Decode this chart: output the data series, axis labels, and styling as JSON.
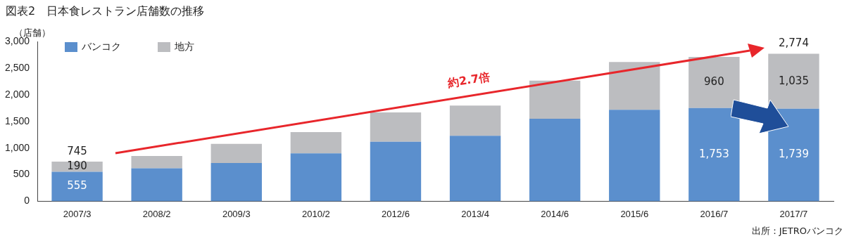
{
  "chart_data": {
    "type": "bar",
    "title": "図表2　日本食レストラン店舗数の推移",
    "ylabel": "（店舗）",
    "categories": [
      "2007/3",
      "2008/2",
      "2009/3",
      "2010/2",
      "2012/6",
      "2013/4",
      "2014/6",
      "2015/6",
      "2016/7",
      "2017/7"
    ],
    "series": [
      {
        "name": "バンコク",
        "color": "#5b8fcd",
        "values": [
          555,
          620,
          720,
          900,
          1120,
          1230,
          1550,
          1720,
          1753,
          1739
        ],
        "value_labels": [
          "555",
          null,
          null,
          null,
          null,
          null,
          null,
          null,
          "1,753",
          "1,739"
        ]
      },
      {
        "name": "地方",
        "color": "#bcbdc0",
        "values": [
          190,
          230,
          360,
          400,
          550,
          570,
          720,
          900,
          960,
          1035
        ],
        "value_labels": [
          "190",
          null,
          null,
          null,
          null,
          null,
          null,
          null,
          "960",
          "1,035"
        ]
      }
    ],
    "stacked": true,
    "totals": [
      "745",
      null,
      null,
      null,
      null,
      null,
      null,
      null,
      null,
      "2,774"
    ],
    "ylim": [
      0,
      3000
    ],
    "yticks": [
      0,
      500,
      {
        "value": 1000,
        "label": "1,000"
      },
      {
        "value": 1500,
        "label": "1,500"
      },
      {
        "value": 2000,
        "label": "2,000"
      },
      {
        "value": 2500,
        "label": "2,500"
      },
      {
        "value": 3000,
        "label": "3,000"
      }
    ],
    "grid": false,
    "legend": "top left",
    "annotations": [
      "約2.7倍",
      "出所：JETROバンコク"
    ]
  }
}
